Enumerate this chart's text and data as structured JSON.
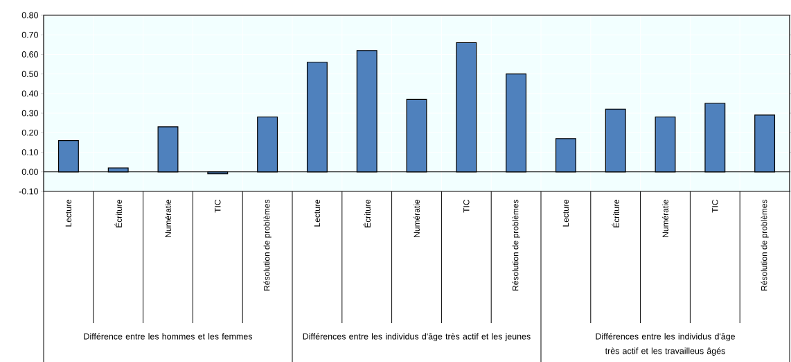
{
  "chart_data": {
    "type": "bar",
    "categories": [
      "Lecture",
      "Écriture",
      "Numératie",
      "TIC",
      "Résolution de problèmes",
      "Lecture",
      "Écriture",
      "Numératie",
      "TIC",
      "Résolution de problèmes",
      "Lecture",
      "Écriture",
      "Numératie",
      "TIC",
      "Résolution de problèmes"
    ],
    "values": [
      0.16,
      0.02,
      0.23,
      -0.01,
      0.28,
      0.56,
      0.62,
      0.37,
      0.66,
      0.5,
      0.17,
      0.32,
      0.28,
      0.35,
      0.29
    ],
    "color": "#4f81bd",
    "ylim": [
      -0.1,
      0.8
    ],
    "yticks": [
      {
        "value": -0.1,
        "label": "-0.10"
      },
      {
        "value": 0,
        "label": "0.00"
      },
      {
        "value": 0.1,
        "label": "0.10"
      },
      {
        "value": 0.2,
        "label": "0.20"
      },
      {
        "value": 0.3,
        "label": "0.30"
      },
      {
        "value": 0.4,
        "label": "0.40"
      },
      {
        "value": 0.5,
        "label": "0.50"
      },
      {
        "value": 0.6,
        "label": "0.60"
      },
      {
        "value": 0.7,
        "label": "0.70"
      },
      {
        "value": 0.8,
        "label": "0.80"
      }
    ],
    "grid": true,
    "annotations": [
      "Différence entre les hommes et les femmes",
      "Différences entre les individus d'âge très actif et les jeunes",
      "Différences entre les individus d'âge très actif et les travailleus âgés"
    ]
  }
}
